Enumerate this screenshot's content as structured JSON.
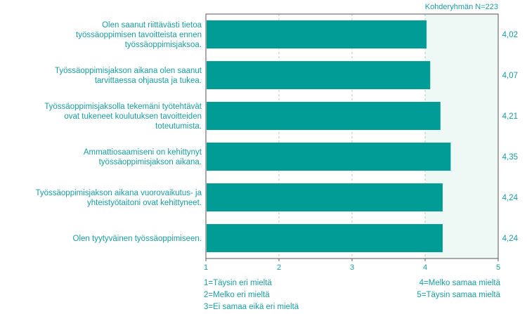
{
  "header_note": "Kohderyhmän N=223",
  "chart_data": {
    "type": "bar",
    "orientation": "horizontal",
    "categories": [
      [
        "Olen saanut riittävästi tietoa",
        "työssäoppimisen tavoitteista ennen",
        "työssäoppimisjaksoa."
      ],
      [
        "Työssäoppimisjakson aikana olen saanut",
        "tarvittaessa ohjausta ja tukea."
      ],
      [
        "Työssäoppimisjaksolla tekemäni työtehtävät",
        "ovat tukeneet koulutuksen tavoitteiden",
        "toteutumista."
      ],
      [
        "Ammattiosaamiseni on kehittynyt",
        "työssäoppimisjakson aikana."
      ],
      [
        "Työssäoppimisjakson aikana vuorovaikutus- ja",
        "yhteistyötaitoni ovat kehittyneet."
      ],
      [
        "Olen tyytyväinen työssäoppimiseen."
      ]
    ],
    "values": [
      4.02,
      4.07,
      4.21,
      4.35,
      4.24,
      4.24
    ],
    "value_labels": [
      "4,02",
      "4,07",
      "4,21",
      "4,35",
      "4,24",
      "4,24"
    ],
    "xlim": [
      1,
      5
    ],
    "xticks": [
      "1",
      "2",
      "3",
      "4",
      "5"
    ],
    "shaded_band": [
      4,
      5
    ],
    "grid": true,
    "colors": {
      "bar": "#009c95",
      "band": "#eef8f5",
      "text": "#1a9ba0",
      "grid": "#bfbfbf",
      "axis": "#555555"
    }
  },
  "legend": {
    "left": [
      "1=Täysin eri mieltä",
      "2=Melko eri mieltä",
      "3=Ei samaa eikä eri mieltä"
    ],
    "right": [
      "4=Melko samaa mieltä",
      "5=Täysin samaa mieltä"
    ]
  }
}
